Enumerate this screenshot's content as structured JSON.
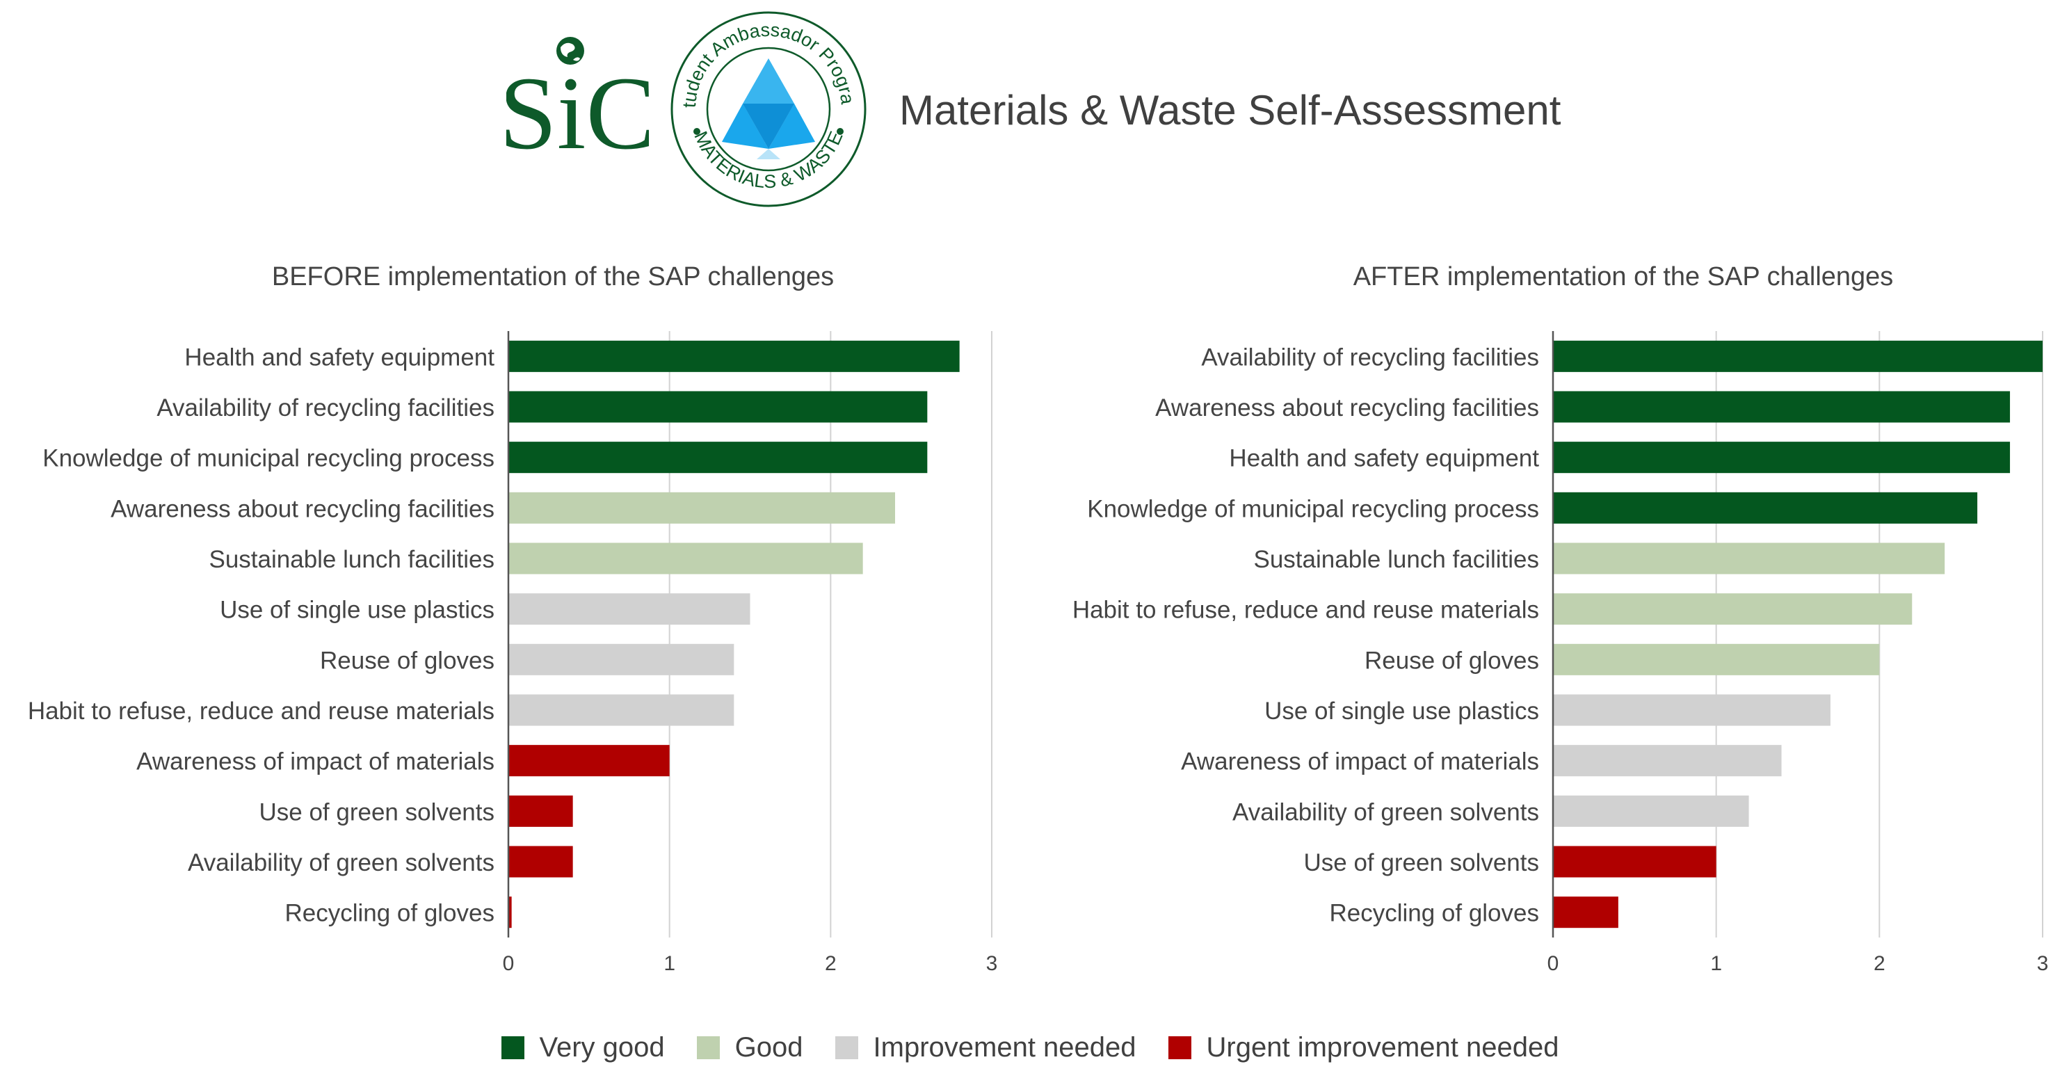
{
  "header": {
    "title": "Materials & Waste Self-Assessment",
    "logo_sic_text": "SiC",
    "logo_sap_ring_top": "Student Ambassador Program",
    "logo_sap_ring_bottom": "MATERIALS & WASTE"
  },
  "colors": {
    "very_good": "#04571F",
    "good": "#BFD1AF",
    "improvement_needed": "#D1D1D1",
    "urgent_improvement_needed": "#B00000",
    "axis": "#555555",
    "grid": "#d2d2d2",
    "text": "#444444",
    "logo_green": "#0E5A2A",
    "logo_blue": "#1AA7EC"
  },
  "legend": [
    {
      "key": "very_good",
      "label": "Very good"
    },
    {
      "key": "good",
      "label": "Good"
    },
    {
      "key": "improvement_needed",
      "label": "Improvement needed"
    },
    {
      "key": "urgent_improvement_needed",
      "label": "Urgent improvement needed"
    }
  ],
  "chart_data": [
    {
      "type": "bar",
      "orientation": "horizontal",
      "title": "BEFORE implementation of the SAP challenges",
      "xlim": [
        0,
        3
      ],
      "xticks": [
        0,
        1,
        2,
        3
      ],
      "grid": true,
      "legend_position": "bottom",
      "categories": [
        "Health and safety equipment",
        "Availability of recycling facilities",
        "Knowledge of municipal recycling process",
        "Awareness about recycling facilities",
        "Sustainable lunch facilities",
        "Use of single use plastics",
        "Reuse of gloves",
        "Habit to refuse, reduce and reuse materials",
        "Awareness of impact of materials",
        "Use of green solvents",
        "Availability of green solvents",
        "Recycling of gloves"
      ],
      "values": [
        2.8,
        2.6,
        2.6,
        2.4,
        2.2,
        1.5,
        1.4,
        1.4,
        1.0,
        0.4,
        0.4,
        0.02
      ],
      "rating": [
        "very_good",
        "very_good",
        "very_good",
        "good",
        "good",
        "improvement_needed",
        "improvement_needed",
        "improvement_needed",
        "urgent_improvement_needed",
        "urgent_improvement_needed",
        "urgent_improvement_needed",
        "urgent_improvement_needed"
      ]
    },
    {
      "type": "bar",
      "orientation": "horizontal",
      "title": "AFTER implementation of the SAP challenges",
      "xlim": [
        0,
        3
      ],
      "xticks": [
        0,
        1,
        2,
        3
      ],
      "grid": true,
      "legend_position": "bottom",
      "categories": [
        "Availability of recycling facilities",
        "Awareness about recycling facilities",
        "Health and safety equipment",
        "Knowledge of municipal recycling process",
        "Sustainable lunch facilities",
        "Habit to refuse, reduce and reuse materials",
        "Reuse of gloves",
        "Use of single use plastics",
        "Awareness of impact of materials",
        "Availability of green solvents",
        "Use of green solvents",
        "Recycling of gloves"
      ],
      "values": [
        3.0,
        2.8,
        2.8,
        2.6,
        2.4,
        2.2,
        2.0,
        1.7,
        1.4,
        1.2,
        1.0,
        0.4
      ],
      "rating": [
        "very_good",
        "very_good",
        "very_good",
        "very_good",
        "good",
        "good",
        "good",
        "improvement_needed",
        "improvement_needed",
        "improvement_needed",
        "urgent_improvement_needed",
        "urgent_improvement_needed"
      ]
    }
  ]
}
